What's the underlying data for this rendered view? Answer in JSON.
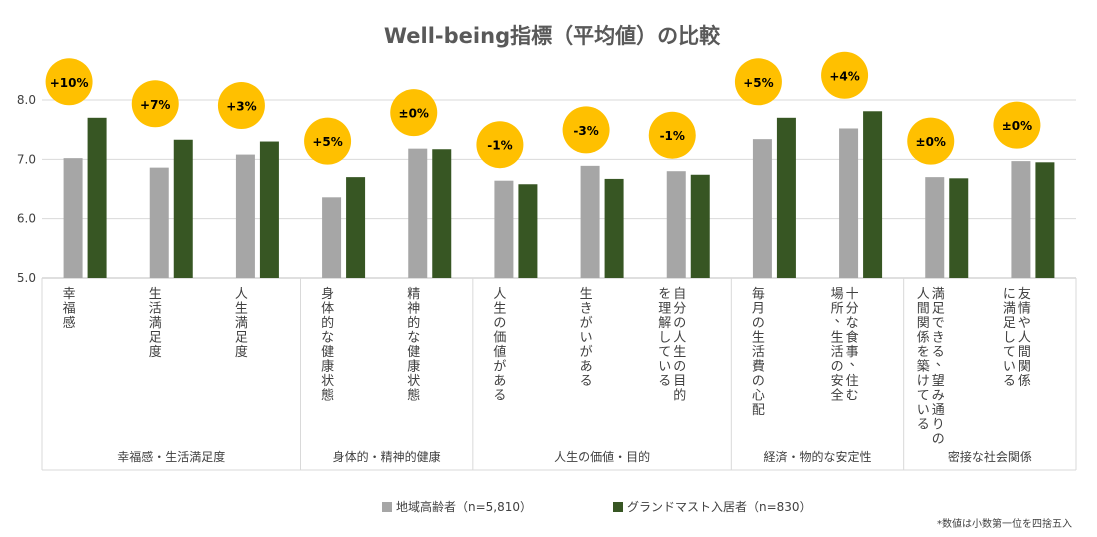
{
  "chart_data": {
    "type": "bar",
    "title": "Well-being指標（平均値）の比較",
    "ylim": [
      5.0,
      8.0
    ],
    "yticks": [
      "5.0",
      "6.0",
      "7.0",
      "8.0"
    ],
    "categories": [
      [
        "幸福感"
      ],
      [
        "生活満足度"
      ],
      [
        "人生満足度"
      ],
      [
        "身体的な健康状態"
      ],
      [
        "精神的な健康状態"
      ],
      [
        "人生の価値がある"
      ],
      [
        "生きがいがある"
      ],
      [
        "自分の人生の目的",
        "を理解している"
      ],
      [
        "毎月の生活費の心配"
      ],
      [
        "十分な食事、住む",
        "場所、生活の安全"
      ],
      [
        "満足できる、望み通りの",
        "人間関係を築けている"
      ],
      [
        "友情や人間関係",
        "に満足している"
      ]
    ],
    "series": [
      {
        "name": "地域高齢者（n=5,810）",
        "color": "#a6a6a6",
        "values": [
          7.02,
          6.86,
          7.08,
          6.36,
          7.18,
          6.64,
          6.89,
          6.8,
          7.34,
          7.52,
          6.7,
          6.97
        ]
      },
      {
        "name": "グランドマスト入居者（n=830）",
        "color": "#375623",
        "values": [
          7.7,
          7.33,
          7.3,
          6.7,
          7.17,
          6.58,
          6.67,
          6.74,
          7.7,
          7.81,
          6.68,
          6.95
        ]
      }
    ],
    "badges": [
      "+10%",
      "+7%",
      "+3%",
      "+5%",
      "±0%",
      "-1%",
      "-3%",
      "-1%",
      "+5%",
      "+4%",
      "±0%",
      "±0%"
    ],
    "badge_color": "#ffc000",
    "groups": [
      {
        "label": "幸福感・生活満足度",
        "count": 3
      },
      {
        "label": "身体的・精神的健康",
        "count": 2
      },
      {
        "label": "人生の価値・目的",
        "count": 3
      },
      {
        "label": "経済・物的な安定性",
        "count": 2
      },
      {
        "label": "密接な社会関係",
        "count": 2
      }
    ],
    "grid": true,
    "legend_position": "bottom",
    "footnote": "*数値は小数第一位を四捨五入"
  }
}
